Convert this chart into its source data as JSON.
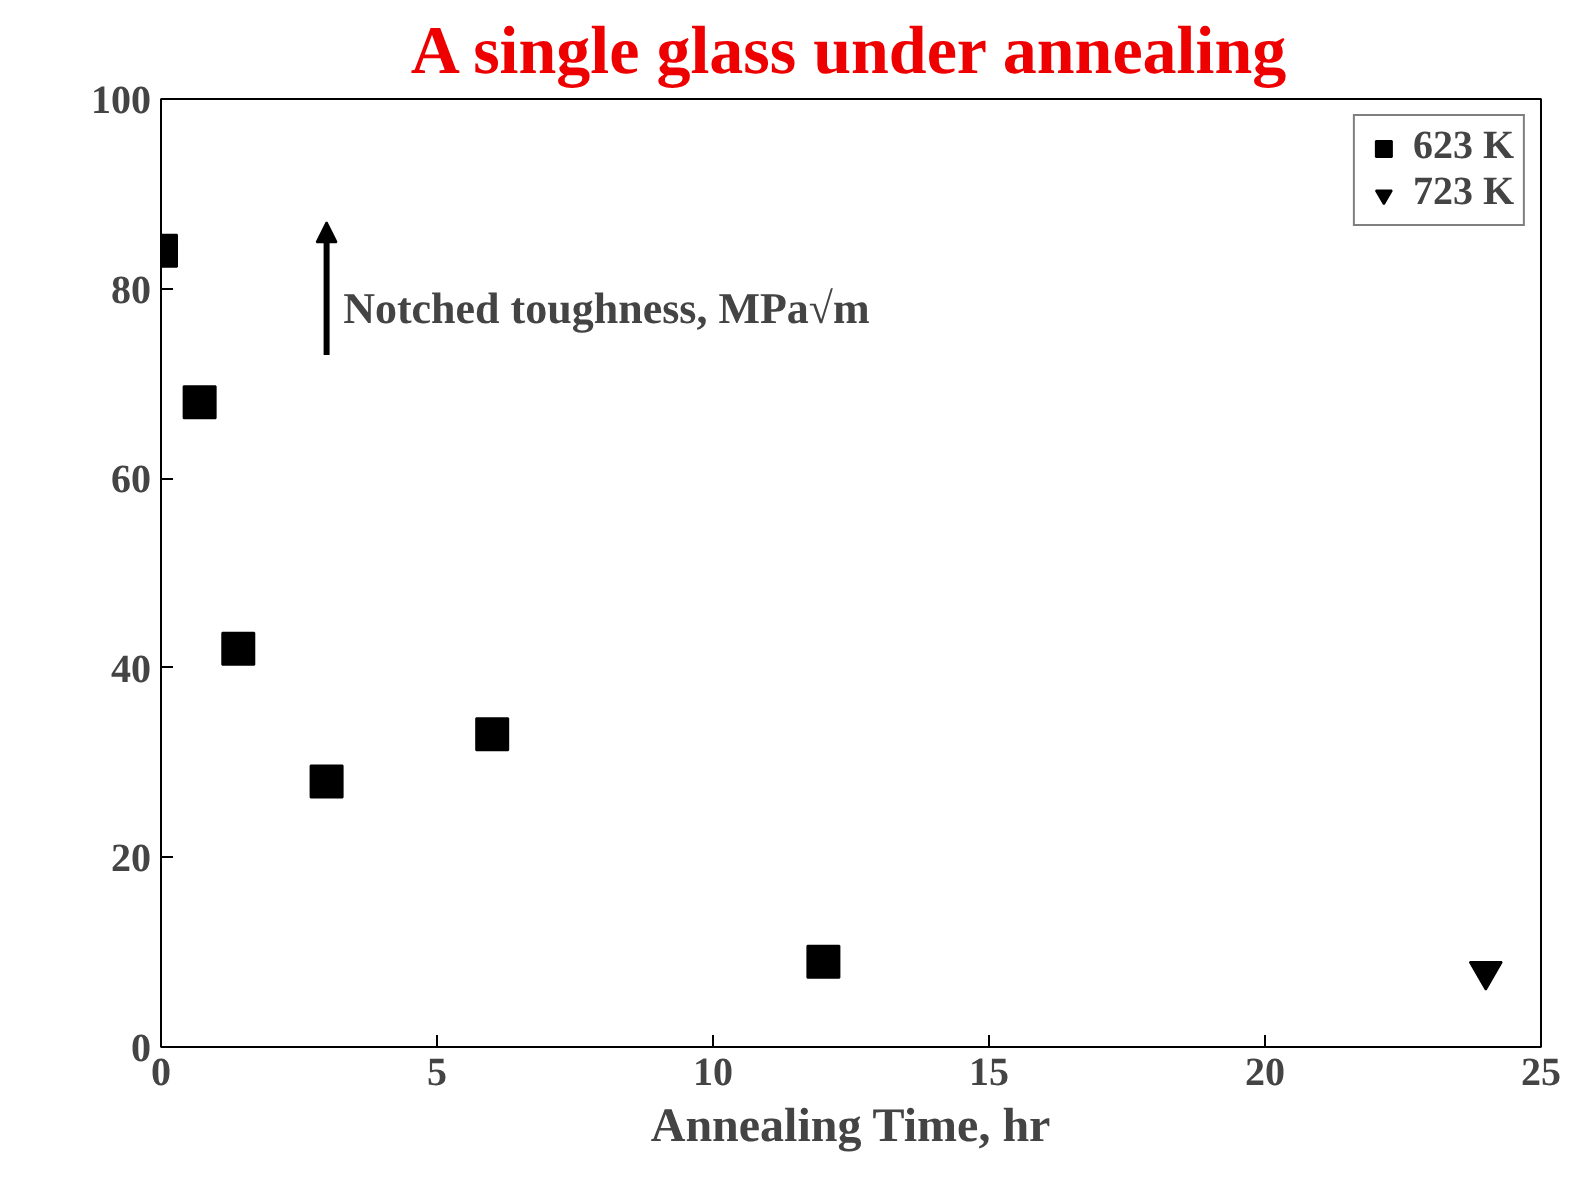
{
  "chart_data": {
    "type": "scatter",
    "title": "A single glass under annealing",
    "xlabel": "Annealing Time, hr",
    "annotations": [
      "Notched toughness, MPa√m"
    ],
    "series": [
      {
        "name": "623 K",
        "color": "#000000",
        "marker": "square",
        "x": [
          0,
          0.7,
          1.4,
          3,
          6,
          12
        ],
        "values": [
          84,
          68,
          42,
          28,
          33,
          9
        ]
      },
      {
        "name": "723 K",
        "color": "#000000",
        "marker": "triangle",
        "x": [
          24
        ],
        "values": [
          8
        ]
      }
    ],
    "xlim": [
      0,
      25
    ],
    "xticks": [
      0,
      5,
      10,
      15,
      20,
      25
    ],
    "ylim": [
      0,
      100
    ],
    "yticks": [
      0,
      20,
      40,
      60,
      80,
      100
    ],
    "grid": false,
    "legend": "top right"
  }
}
